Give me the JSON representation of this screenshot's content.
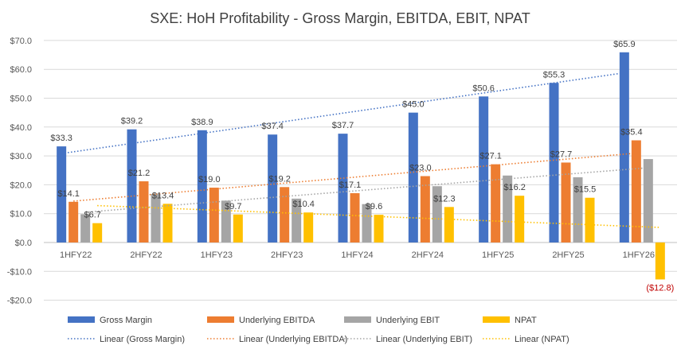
{
  "chart_data": {
    "type": "bar",
    "title": "SXE: HoH Profitability - Gross Margin, EBITDA, EBIT, NPAT",
    "categories": [
      "1HFY22",
      "2HFY22",
      "1HFY23",
      "2HFY23",
      "1HFY24",
      "2HFY24",
      "1HFY25",
      "2HFY25",
      "1HFY26"
    ],
    "ylim": [
      -20,
      70
    ],
    "yticks": [
      -20,
      -10,
      0,
      10,
      20,
      30,
      40,
      50,
      60,
      70
    ],
    "ytick_labels": [
      "-$20.0",
      "-$10.0",
      "$0.0",
      "$10.0",
      "$20.0",
      "$30.0",
      "$40.0",
      "$50.0",
      "$60.0",
      "$70.0"
    ],
    "grid": true,
    "legend_position": "bottom",
    "series": [
      {
        "name": "Gross Margin",
        "color": "#4472c4",
        "values": [
          33.3,
          39.2,
          38.9,
          37.4,
          37.7,
          45.0,
          50.6,
          55.3,
          65.9
        ],
        "labels": [
          "$33.3",
          "$39.2",
          "$38.9",
          "$37.4",
          "$37.7",
          "$45.0",
          "$50.6",
          "$55.3",
          "$65.9"
        ]
      },
      {
        "name": "Underlying EBITDA",
        "color": "#ed7d31",
        "values": [
          14.1,
          21.2,
          19.0,
          19.2,
          17.1,
          23.0,
          27.1,
          27.7,
          35.4
        ],
        "labels": [
          "$14.1",
          "$21.2",
          "$19.0",
          "$19.2",
          "$17.1",
          "$23.0",
          "$27.1",
          "$27.7",
          "$35.4"
        ]
      },
      {
        "name": "Underlying EBIT",
        "color": "#a5a5a5",
        "values": [
          9.8,
          16.8,
          14.5,
          15.2,
          13.3,
          19.5,
          23.2,
          22.6,
          28.9
        ],
        "labels": [
          "",
          "",
          "",
          "",
          "",
          "",
          "",
          "",
          ""
        ]
      },
      {
        "name": "NPAT",
        "color": "#ffc000",
        "values": [
          6.7,
          13.4,
          9.7,
          10.4,
          9.6,
          12.3,
          16.2,
          15.5,
          -12.8
        ],
        "labels": [
          "$6.7",
          "$13.4",
          "$9.7",
          "$10.4",
          "$9.6",
          "$12.3",
          "$16.2",
          "$15.5",
          "($12.8)"
        ]
      }
    ],
    "trendlines": [
      {
        "name": "Linear (Gross Margin)",
        "color": "#4472c4",
        "series": 0
      },
      {
        "name": "Linear (Underlying EBITDA)",
        "color": "#ed7d31",
        "series": 1
      },
      {
        "name": "Linear (Underlying EBIT)",
        "color": "#a5a5a5",
        "series": 2
      },
      {
        "name": "Linear (NPAT)",
        "color": "#ffc000",
        "series": 3
      }
    ]
  }
}
